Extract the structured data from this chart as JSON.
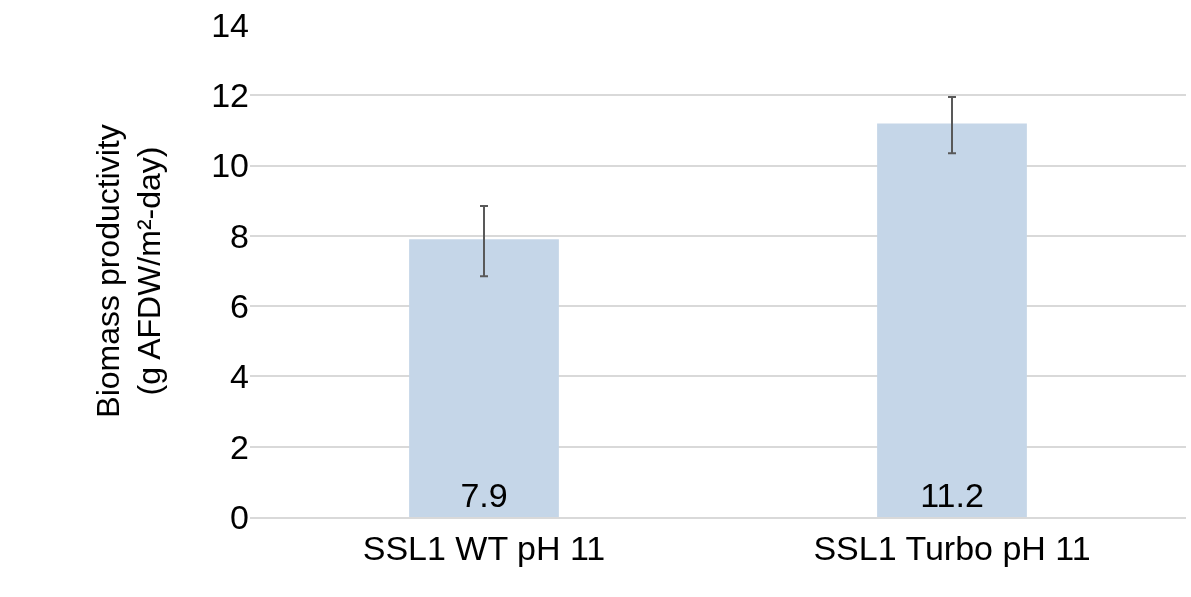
{
  "chart_data": {
    "type": "bar",
    "ylabel": "Biomass productivity\n(g AFDW/m²-day)",
    "categories": [
      "SSL1 WT pH 11",
      "SSL1 Turbo pH 11"
    ],
    "values": [
      7.9,
      11.2
    ],
    "errors": [
      [
        6.85,
        8.85
      ],
      [
        10.35,
        11.95
      ]
    ],
    "color": "#c5d6e8",
    "ylim": [
      0,
      14
    ],
    "yticks": [
      0,
      2,
      4,
      6,
      8,
      10,
      12,
      14
    ],
    "grid": "y",
    "data_labels": true,
    "legend": false
  }
}
